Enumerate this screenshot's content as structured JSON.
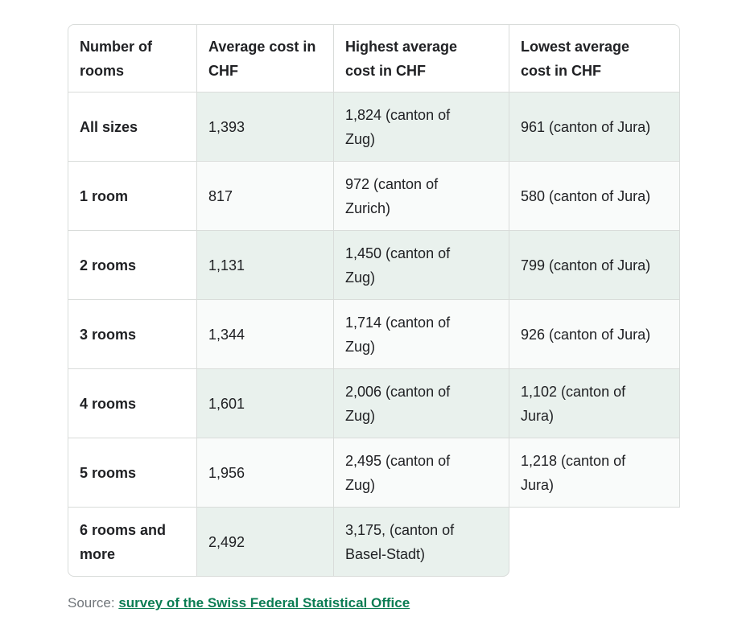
{
  "chart_data": {
    "type": "table",
    "columns": [
      "Number of rooms",
      "Average cost in CHF",
      "Highest average cost in CHF",
      "Lowest average cost in CHF"
    ],
    "rows": [
      [
        "All sizes",
        "1,393",
        "1,824 (canton of Zug)",
        "961 (canton of Jura)"
      ],
      [
        "1 room",
        "817",
        "972 (canton of Zurich)",
        "580 (canton of Jura)"
      ],
      [
        "2 rooms",
        "1,131",
        "1,450 (canton of Zug)",
        "799 (canton of Jura)"
      ],
      [
        "3 rooms",
        "1,344",
        "1,714 (canton of Zug)",
        "926 (canton of Jura)"
      ],
      [
        "4 rooms",
        "1,601",
        "2,006 (canton of Zug)",
        "1,102 (canton of Jura)"
      ],
      [
        "5 rooms",
        "1,956",
        "2,495 (canton of Zug)",
        "1,218 (canton of Jura)"
      ],
      [
        "6 rooms and more",
        "2,492",
        "3,175, (canton of Basel-Stadt)",
        ""
      ]
    ]
  },
  "source": {
    "prefix": "Source: ",
    "link_text": "survey of the Swiss Federal Statistical Office"
  },
  "colors": {
    "row_highlight_green": "#e9f1ed",
    "row_light": "#f9fbfa",
    "border_gray": "#d9dcda",
    "link_green": "#0b7d53",
    "text_dark": "#202124",
    "source_gray": "#70757a"
  }
}
